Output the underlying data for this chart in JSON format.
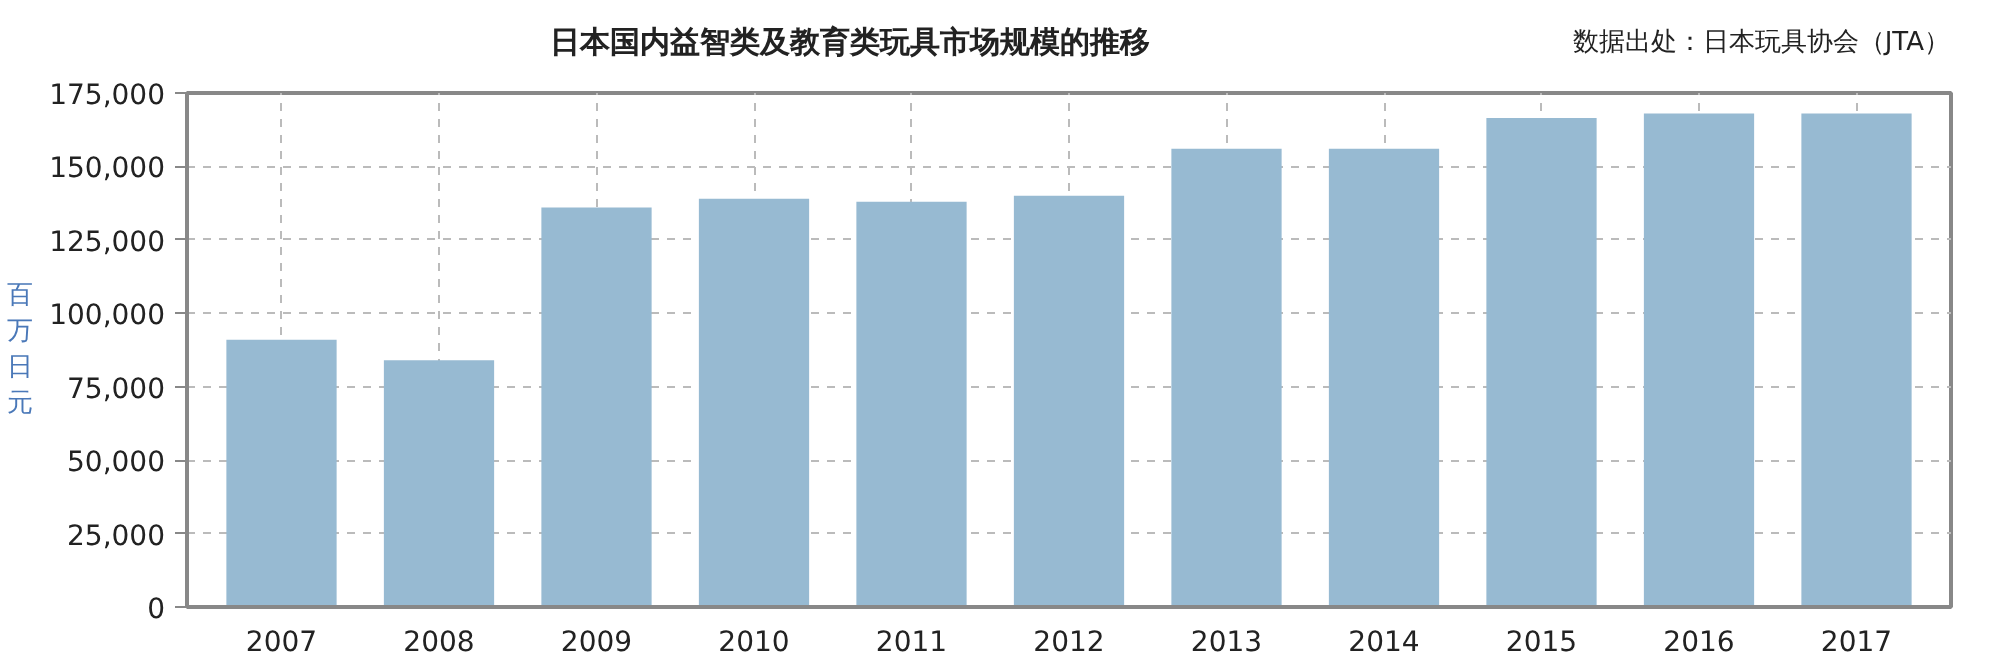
{
  "chart_data": {
    "type": "bar",
    "title": "日本国内益智类及教育类玩具市场规模的推移",
    "ylabel": "百万日元",
    "annotations": [
      "数据出处：日本玩具协会（JTA）"
    ],
    "categories": [
      "2007",
      "2008",
      "2009",
      "2010",
      "2011",
      "2012",
      "2013",
      "2014",
      "2015",
      "2016",
      "2017"
    ],
    "values": [
      91000,
      84000,
      136000,
      139000,
      138000,
      140000,
      156000,
      156000,
      166500,
      168000,
      168000
    ],
    "color": "#97bad2",
    "ylim": [
      0,
      175000
    ],
    "yticks": [
      {
        "value": 0,
        "label": "0"
      },
      {
        "value": 25000,
        "label": "25,000"
      },
      {
        "value": 50000,
        "label": "50,000"
      },
      {
        "value": 75000,
        "label": "75,000"
      },
      {
        "value": 100000,
        "label": "100,000"
      },
      {
        "value": 125000,
        "label": "125,000"
      },
      {
        "value": 150000,
        "label": "150,000"
      },
      {
        "value": 175000,
        "label": "175,000"
      }
    ],
    "grid": true
  }
}
